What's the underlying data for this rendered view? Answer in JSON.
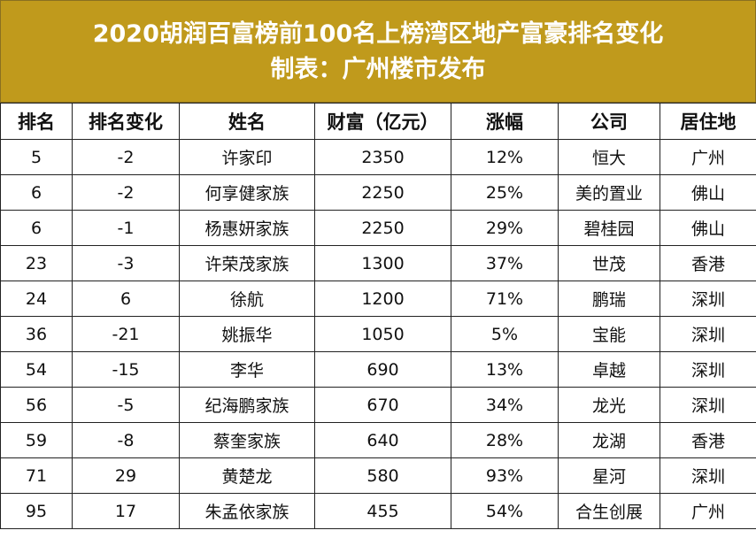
{
  "title": {
    "line1": "2020胡润百富榜前100名上榜湾区地产富豪排名变化",
    "line2": "制表：广州楼市发布"
  },
  "headers": [
    "排名",
    "排名变化",
    "姓名",
    "财富（亿元）",
    "涨幅",
    "公司",
    "居住地"
  ],
  "rows": [
    [
      "5",
      "-2",
      "许家印",
      "2350",
      "12%",
      "恒大",
      "广州"
    ],
    [
      "6",
      "-2",
      "何享健家族",
      "2250",
      "25%",
      "美的置业",
      "佛山"
    ],
    [
      "6",
      "-1",
      "杨惠妍家族",
      "2250",
      "29%",
      "碧桂园",
      "佛山"
    ],
    [
      "23",
      "-3",
      "许荣茂家族",
      "1300",
      "37%",
      "世茂",
      "香港"
    ],
    [
      "24",
      "6",
      "徐航",
      "1200",
      "71%",
      "鹏瑞",
      "深圳"
    ],
    [
      "36",
      "-21",
      "姚振华",
      "1050",
      "5%",
      "宝能",
      "深圳"
    ],
    [
      "54",
      "-15",
      "李华",
      "690",
      "13%",
      "卓越",
      "深圳"
    ],
    [
      "56",
      "-5",
      "纪海鹏家族",
      "670",
      "34%",
      "龙光",
      "深圳"
    ],
    [
      "59",
      "-8",
      "蔡奎家族",
      "640",
      "28%",
      "龙湖",
      "香港"
    ],
    [
      "71",
      "29",
      "黄楚龙",
      "580",
      "93%",
      "星河",
      "深圳"
    ],
    [
      "95",
      "17",
      "朱孟依家族",
      "455",
      "54%",
      "合生创展",
      "广州"
    ]
  ],
  "colors": {
    "title_background": "#c09a1c",
    "title_text": "#ffffff",
    "grid": "#222222"
  }
}
